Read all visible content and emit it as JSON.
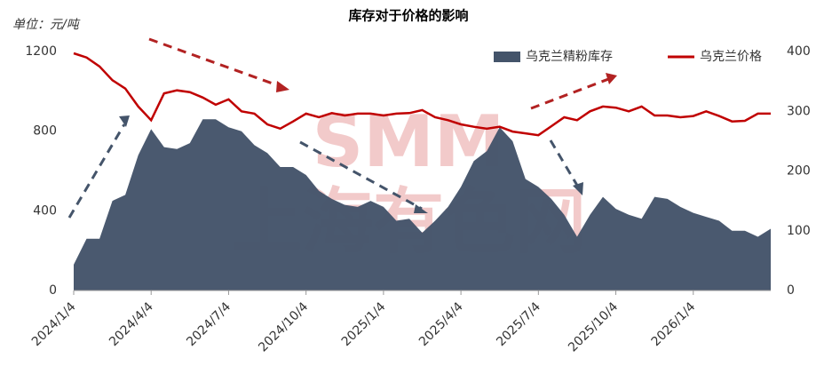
{
  "chart_data": {
    "type": "area-line",
    "title": "库存对于价格的影响",
    "unit_label": "单位：元/吨",
    "watermark": [
      "SMM",
      "上海有色网"
    ],
    "categories": [
      "2024/1/4",
      null,
      null,
      null,
      null,
      null,
      "2024/4/4",
      null,
      null,
      null,
      null,
      null,
      "2024/7/4",
      null,
      null,
      null,
      null,
      null,
      "2024/10/4",
      null,
      null,
      null,
      null,
      null,
      "2025/1/4",
      null,
      null,
      null,
      null,
      null,
      "2025/4/4",
      null,
      null,
      null,
      null,
      null,
      "2025/7/4",
      null,
      null,
      null,
      null,
      null,
      "2025/10/4",
      null,
      null,
      null,
      null,
      null,
      "2026/1/4",
      null,
      null,
      null,
      null,
      null,
      null
    ],
    "series": [
      {
        "name": "乌克兰精粉库存",
        "color": "#44546a",
        "kind": "area",
        "axis": "y",
        "values": [
          130,
          260,
          260,
          450,
          480,
          680,
          810,
          720,
          710,
          740,
          860,
          860,
          820,
          800,
          730,
          690,
          620,
          620,
          580,
          500,
          460,
          430,
          420,
          450,
          420,
          350,
          360,
          290,
          350,
          420,
          520,
          650,
          700,
          820,
          750,
          560,
          520,
          460,
          380,
          270,
          380,
          470,
          410,
          380,
          360,
          470,
          460,
          420,
          390,
          370,
          350,
          300,
          300,
          270,
          310
        ]
      },
      {
        "name": "乌克兰价格",
        "color": "#c00000",
        "kind": "line",
        "axis": "y2",
        "values": [
          397,
          390,
          375,
          352,
          338,
          308,
          285,
          330,
          335,
          332,
          323,
          311,
          320,
          300,
          296,
          278,
          271,
          283,
          296,
          290,
          297,
          293,
          296,
          296,
          293,
          296,
          297,
          302,
          290,
          285,
          278,
          274,
          271,
          274,
          266,
          263,
          260,
          275,
          290,
          285,
          300,
          308,
          306,
          300,
          308,
          293,
          293,
          290,
          292,
          300,
          292,
          283,
          284,
          296,
          296
        ]
      }
    ],
    "ylim": [
      0,
      1200
    ],
    "yticks": [
      0,
      400,
      800,
      1200
    ],
    "y2lim": [
      0,
      400
    ],
    "y2ticks": [
      0,
      100,
      200,
      300,
      400
    ],
    "grid": false,
    "legend": "top-right"
  }
}
